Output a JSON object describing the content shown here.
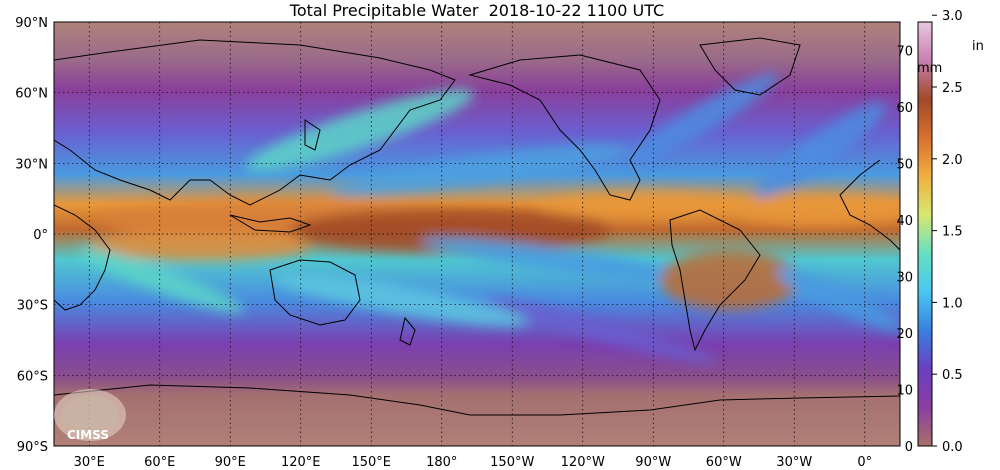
{
  "title": "Total Precipitable Water  2018-10-22 1100 UTC",
  "map": {
    "lon_ticks": [
      "30°E",
      "60°E",
      "90°E",
      "120°E",
      "150°E",
      "180°",
      "150°W",
      "120°W",
      "90°W",
      "60°W",
      "30°W",
      "0°"
    ],
    "lat_ticks": [
      "90°N",
      "60°N",
      "30°N",
      "0°",
      "30°S",
      "60°S",
      "90°S"
    ],
    "logo": "CIMSS",
    "field_colors": {
      "dry": "#a36a6a",
      "low": "#8a3f9a",
      "moist_low": "#4d8de0",
      "moist_mid": "#5dd5c8",
      "moist_high": "#e8973a",
      "very_moist": "#9a4a28"
    }
  },
  "colorbar": {
    "mm_unit": "mm",
    "in_unit": "in",
    "mm_ticks": [
      "70",
      "60",
      "50",
      "40",
      "30",
      "20",
      "10",
      "0"
    ],
    "in_ticks": [
      "3.0",
      "2.5",
      "2.0",
      "1.5",
      "1.0",
      "0.5",
      "0.0"
    ],
    "stops": [
      "#a8706a",
      "#8a3fa0",
      "#6a3fc0",
      "#3a7fe0",
      "#48c8f0",
      "#66e0c0",
      "#d8e870",
      "#f0b040",
      "#d87030",
      "#a04a28",
      "#c880b0",
      "#e8c8e0"
    ]
  }
}
